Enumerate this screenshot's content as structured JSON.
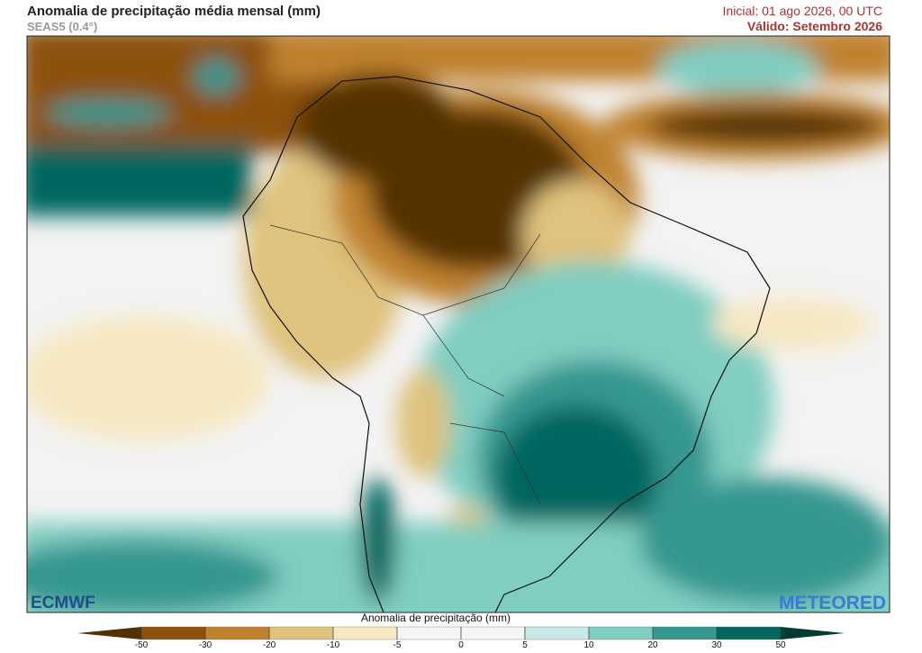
{
  "header": {
    "title": "Anomalia de precipitação média mensal (mm)",
    "subtitle": "SEAS5 (0.4°)",
    "initial": "Inicial: 01 ago 2026, 00 UTC",
    "valid": "Válido: Setembro 2026"
  },
  "logos": {
    "left": "ECMWF",
    "right": "METEORED"
  },
  "colorbar": {
    "label": "Anomalia de precipitação (mm)",
    "ticks": [
      -50,
      -30,
      -20,
      -10,
      -5,
      0,
      5,
      10,
      20,
      30,
      50
    ],
    "colors": [
      "#543005",
      "#8c510a",
      "#bf812d",
      "#dfc27d",
      "#f6e8c3",
      "#f5f5f5",
      "#f5f5f5",
      "#c7eae5",
      "#80cdc1",
      "#35978f",
      "#01665e",
      "#003c30"
    ]
  }
}
